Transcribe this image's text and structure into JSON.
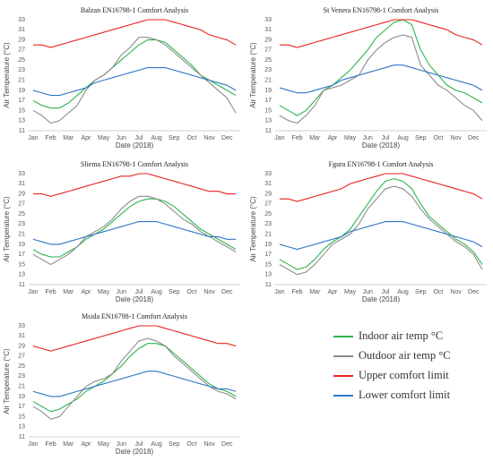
{
  "legend": [
    {
      "name": "Indoor air temp °C",
      "color": "#2db34a"
    },
    {
      "name": "Outdoor air temp °C",
      "color": "#8c8c8c"
    },
    {
      "name": "Upper comfort limit",
      "color": "#e8231f"
    },
    {
      "name": "Lower comfort limit",
      "color": "#2e75c6"
    }
  ],
  "chart_data": [
    {
      "type": "line",
      "title": "Balzan EN16798-1 Comfort Analysis",
      "xlabel": "Date (2018)",
      "ylabel": "Air Temperature (°C)",
      "categories": [
        "Jan",
        null,
        "Feb",
        null,
        "Mar",
        null,
        "Apr",
        null,
        "May",
        null,
        "Jun",
        null,
        "Jul",
        null,
        "Aug",
        null,
        "Sep",
        null,
        "Oct",
        null,
        "Nov",
        null,
        "Dec",
        null
      ],
      "ylim": [
        11,
        33
      ],
      "yticks": [
        11,
        13,
        15,
        17,
        19,
        21,
        23,
        25,
        27,
        29,
        31,
        33
      ],
      "grid": false,
      "series": [
        {
          "values": [
            17,
            16,
            15.5,
            15.5,
            16.5,
            18,
            19.5,
            21,
            22,
            23.5,
            25,
            26.5,
            28,
            29,
            29,
            28.5,
            27,
            25.5,
            24,
            22,
            21,
            20,
            19,
            18
          ]
        },
        {
          "values": [
            15,
            14,
            12.5,
            13,
            14.5,
            16,
            19,
            21,
            22,
            23.5,
            26,
            27.5,
            29.5,
            29.5,
            29,
            28,
            26.5,
            25,
            23.5,
            22,
            20.5,
            19,
            17.5,
            14.5
          ]
        },
        {
          "values": [
            28,
            28,
            27.5,
            28,
            28.5,
            29,
            29.5,
            30,
            30.5,
            31,
            31.5,
            32,
            32.5,
            33,
            33,
            33,
            32.5,
            32,
            31.5,
            31,
            30,
            29.5,
            29,
            28
          ]
        },
        {
          "values": [
            19,
            18.5,
            18,
            18,
            18.5,
            19,
            19.5,
            20.5,
            21,
            21.5,
            22,
            22.5,
            23,
            23.5,
            23.5,
            23.5,
            23,
            22.5,
            22,
            21.5,
            21,
            20.5,
            20,
            19
          ]
        }
      ]
    },
    {
      "type": "line",
      "title": "St Venera EN16798-1 Comfort Analysis",
      "xlabel": "Date (2018)",
      "ylabel": "Air Temperature (°C)",
      "categories": [
        "Jan",
        null,
        "Feb",
        null,
        "Mar",
        null,
        "Apr",
        null,
        "May",
        null,
        "Jun",
        null,
        "Jul",
        null,
        "Aug",
        null,
        "Sep",
        null,
        "Oct",
        null,
        "Nov",
        null,
        "Dec",
        null
      ],
      "ylim": [
        11,
        33
      ],
      "yticks": [
        11,
        13,
        15,
        17,
        19,
        21,
        23,
        25,
        27,
        29,
        31,
        33
      ],
      "grid": false,
      "series": [
        {
          "values": [
            16,
            15,
            14,
            15,
            17,
            19,
            20,
            21.5,
            23,
            25,
            27,
            29.5,
            31,
            32.5,
            33,
            32,
            27,
            24,
            22,
            20,
            19,
            18.5,
            17.5,
            16.5
          ]
        },
        {
          "values": [
            14,
            13,
            12.5,
            14,
            16,
            19,
            19.5,
            20,
            21,
            22,
            25,
            27,
            28.5,
            29.5,
            30,
            29.5,
            24,
            22,
            20,
            19,
            17.5,
            16,
            15,
            13
          ]
        },
        {
          "values": [
            28,
            28,
            27.5,
            28,
            28.5,
            29,
            29.5,
            30,
            30.5,
            31,
            31.5,
            32,
            32.5,
            33,
            33,
            33,
            32.5,
            32,
            31.5,
            31,
            30,
            29.5,
            29,
            28
          ]
        },
        {
          "values": [
            19.5,
            19,
            18.5,
            18.5,
            19,
            19.5,
            20,
            21,
            21.5,
            22,
            22.5,
            23,
            23.5,
            24,
            24,
            23.5,
            23,
            22.5,
            22,
            21.5,
            21,
            20.5,
            20,
            19
          ]
        }
      ]
    },
    {
      "type": "line",
      "title": "Sliema EN16798-1 Comfort Analysis",
      "xlabel": "Date (2018)",
      "ylabel": "Air Temperature (°C)",
      "categories": [
        "Jan",
        null,
        "Feb",
        null,
        "Mar",
        null,
        "Apr",
        null,
        "May",
        null,
        "Jun",
        null,
        "Jul",
        null,
        "Aug",
        null,
        "Sep",
        null,
        "Oct",
        null,
        "Nov",
        null,
        "Dec",
        null
      ],
      "ylim": [
        11,
        33
      ],
      "yticks": [
        11,
        13,
        15,
        17,
        19,
        21,
        23,
        25,
        27,
        29,
        31,
        33
      ],
      "grid": false,
      "series": [
        {
          "values": [
            18,
            17,
            16.5,
            16.5,
            17.5,
            18.5,
            20,
            21,
            22,
            23.5,
            25,
            26.5,
            27.5,
            28,
            28,
            27.5,
            26.5,
            25,
            23.5,
            22,
            21,
            20,
            19,
            18
          ]
        },
        {
          "values": [
            17,
            16,
            15,
            16,
            17,
            18.5,
            20.5,
            21.5,
            22.5,
            24,
            26,
            27.5,
            28.5,
            28.5,
            28,
            27,
            25.5,
            24,
            23,
            21.5,
            20.5,
            19.5,
            18.5,
            17.5
          ]
        },
        {
          "values": [
            29,
            29,
            28.5,
            29,
            29.5,
            30,
            30.5,
            31,
            31.5,
            32,
            32.5,
            32.5,
            33,
            33,
            32.5,
            32,
            31.5,
            31,
            30.5,
            30,
            29.5,
            29.5,
            29,
            29
          ]
        },
        {
          "values": [
            20,
            19.5,
            19,
            19,
            19.5,
            20,
            20.5,
            21,
            21.5,
            22,
            22.5,
            23,
            23.5,
            23.5,
            23.5,
            23,
            22.5,
            22,
            21.5,
            21,
            20.5,
            20.5,
            20,
            20
          ]
        }
      ]
    },
    {
      "type": "line",
      "title": "Fgura EN16798-1 Comfort Analysis",
      "xlabel": "Date (2018)",
      "ylabel": "Air Temperature (°C)",
      "categories": [
        "Jan",
        null,
        "Feb",
        null,
        "Mar",
        null,
        "Apr",
        null,
        "May",
        null,
        "Jun",
        null,
        "Jul",
        null,
        "Aug",
        null,
        "Sep",
        null,
        "Oct",
        null,
        "Nov",
        null,
        "Dec",
        null
      ],
      "ylim": [
        11,
        33
      ],
      "yticks": [
        11,
        13,
        15,
        17,
        19,
        21,
        23,
        25,
        27,
        29,
        31,
        33
      ],
      "grid": false,
      "series": [
        {
          "values": [
            16,
            15,
            14,
            14.5,
            16,
            18,
            19.5,
            20.5,
            22,
            24.5,
            27,
            29.5,
            31.5,
            32,
            31.5,
            30,
            27,
            24.5,
            23,
            21.5,
            20,
            19,
            17.5,
            15
          ]
        },
        {
          "values": [
            15,
            14,
            13,
            13.5,
            15,
            17,
            19,
            20,
            21,
            23,
            26,
            28,
            30,
            30.5,
            30,
            28.5,
            26,
            24,
            22.5,
            21,
            19.5,
            18.5,
            17,
            14
          ]
        },
        {
          "values": [
            28,
            28,
            27.5,
            28,
            28.5,
            29,
            29.5,
            30,
            31,
            31.5,
            32,
            32.5,
            33,
            33,
            33,
            32.5,
            32,
            31.5,
            31,
            30.5,
            30,
            29.5,
            29,
            28
          ]
        },
        {
          "values": [
            19,
            18.5,
            18,
            18.5,
            19,
            19.5,
            20,
            20.5,
            21.5,
            22,
            22.5,
            23,
            23.5,
            23.5,
            23.5,
            23,
            22.5,
            22,
            21.5,
            21,
            20.5,
            20,
            19.5,
            18.5
          ]
        }
      ]
    },
    {
      "type": "line",
      "title": "Msida EN16798-1 Comfort Analysis",
      "xlabel": "Date (2018)",
      "ylabel": "Air Temperature (°C)",
      "categories": [
        "Jan",
        null,
        "Feb",
        null,
        "Mar",
        null,
        "Apr",
        null,
        "May",
        null,
        "Jun",
        null,
        "Jul",
        null,
        "Aug",
        null,
        "Sep",
        null,
        "Oct",
        null,
        "Nov",
        null,
        "Dec",
        null
      ],
      "ylim": [
        11,
        33
      ],
      "yticks": [
        11,
        13,
        15,
        17,
        19,
        21,
        23,
        25,
        27,
        29,
        31,
        33
      ],
      "grid": false,
      "series": [
        {
          "values": [
            18,
            17,
            16,
            16.5,
            17.5,
            18.5,
            20,
            21,
            22,
            23.5,
            25,
            27,
            28.5,
            29.5,
            29.5,
            29,
            27.5,
            26,
            24.5,
            23,
            21.5,
            20.5,
            20,
            19
          ]
        },
        {
          "values": [
            17,
            16,
            14.5,
            15,
            17,
            19,
            21,
            22,
            22.5,
            23.5,
            26,
            28,
            30,
            30.5,
            30,
            29,
            27,
            25.5,
            24,
            22.5,
            21,
            20,
            19.5,
            18.5
          ]
        },
        {
          "values": [
            29,
            28.5,
            28,
            28.5,
            29,
            29.5,
            30,
            30.5,
            31,
            31.5,
            32,
            32.5,
            33,
            33,
            33,
            32.5,
            32,
            31.5,
            31,
            30.5,
            30,
            29.5,
            29.5,
            29
          ]
        },
        {
          "values": [
            20,
            19.5,
            19,
            19,
            19.5,
            20,
            20.5,
            21,
            21.5,
            22,
            22.5,
            23,
            23.5,
            24,
            24,
            23.5,
            23,
            22.5,
            22,
            21.5,
            21,
            20.5,
            20.5,
            20
          ]
        }
      ]
    }
  ]
}
